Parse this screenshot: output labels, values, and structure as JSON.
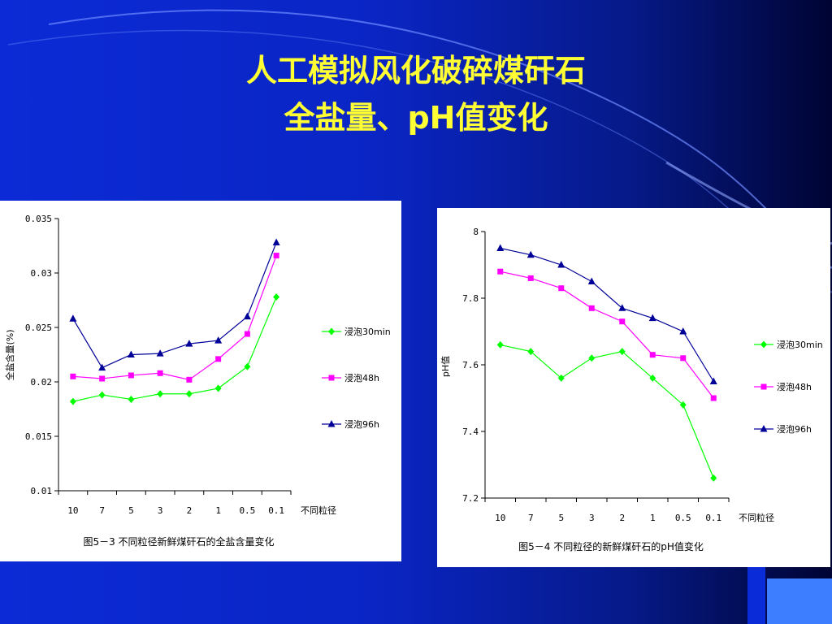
{
  "slide": {
    "title_line1": "人工模拟风化破碎煤矸石",
    "title_line2": "全盐量、pH值变化"
  },
  "colors": {
    "green": "#00ff00",
    "magenta": "#ff00ff",
    "navy": "#000099",
    "title": "#ffff33"
  },
  "chart_data": [
    {
      "type": "line",
      "title": "图5－3  不同粒径新鲜煤矸石的全盐含量变化",
      "xlabel": "不同粒径",
      "ylabel": "全盐含量(%)",
      "categories": [
        "10",
        "7",
        "5",
        "3",
        "2",
        "1",
        "0.5",
        "0.1"
      ],
      "ylim": [
        0.01,
        0.035
      ],
      "yticks": [
        "0.01",
        "0.015",
        "0.02",
        "0.025",
        "0.03",
        "0.035"
      ],
      "legend_position": "right",
      "series": [
        {
          "name": "浸泡30min",
          "color": "#00ff00",
          "marker": "diamond",
          "values": [
            0.0182,
            0.0188,
            0.0184,
            0.0189,
            0.0189,
            0.0194,
            0.0214,
            0.0278
          ]
        },
        {
          "name": "浸泡48h",
          "color": "#ff00ff",
          "marker": "square",
          "values": [
            0.0205,
            0.0203,
            0.0206,
            0.0208,
            0.0202,
            0.0221,
            0.0244,
            0.0316
          ]
        },
        {
          "name": "浸泡96h",
          "color": "#000099",
          "marker": "triangle",
          "values": [
            0.0258,
            0.0213,
            0.0225,
            0.0226,
            0.0235,
            0.0238,
            0.026,
            0.0328
          ]
        }
      ]
    },
    {
      "type": "line",
      "title": "图5－4  不同粒径的新鲜煤矸石的pH值变化",
      "xlabel": "不同粒径",
      "ylabel": "pH值",
      "categories": [
        "10",
        "7",
        "5",
        "3",
        "2",
        "1",
        "0.5",
        "0.1"
      ],
      "ylim": [
        7.2,
        8
      ],
      "yticks": [
        "7.2",
        "7.4",
        "7.6",
        "7.8",
        "8"
      ],
      "legend_position": "right",
      "series": [
        {
          "name": "浸泡30min",
          "color": "#00ff00",
          "marker": "diamond",
          "values": [
            7.66,
            7.64,
            7.56,
            7.62,
            7.64,
            7.56,
            7.48,
            7.26
          ]
        },
        {
          "name": "浸泡48h",
          "color": "#ff00ff",
          "marker": "square",
          "values": [
            7.88,
            7.86,
            7.83,
            7.77,
            7.73,
            7.63,
            7.62,
            7.5
          ]
        },
        {
          "name": "浸泡96h",
          "color": "#000099",
          "marker": "triangle",
          "values": [
            7.95,
            7.93,
            7.9,
            7.85,
            7.77,
            7.74,
            7.7,
            7.55
          ]
        }
      ]
    }
  ]
}
